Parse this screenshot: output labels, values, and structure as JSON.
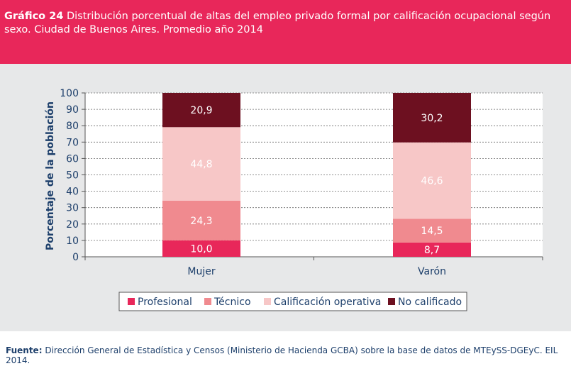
{
  "header": {
    "label": "Gráfico 24",
    "title": "Distribución porcentual de altas del empleo privado formal por calificación ocupacional según sexo. Ciudad de Buenos Aires. Promedio año 2014"
  },
  "footer": {
    "label": "Fuente:",
    "text": "Dirección General de Estadística y Censos (Ministerio de Hacienda GCBA) sobre la base de datos de MTEySS-DGEyC. EIL 2014."
  },
  "chart_data": {
    "type": "bar",
    "stacked": true,
    "categories": [
      "Mujer",
      "Varón"
    ],
    "series": [
      {
        "name": "Profesional",
        "values": [
          10.0,
          8.7
        ],
        "labels": [
          "10,0",
          "8,7"
        ],
        "color": "#e8275a",
        "label_color": "#ffffff"
      },
      {
        "name": "Técnico",
        "values": [
          24.3,
          14.5
        ],
        "labels": [
          "24,3",
          "14,5"
        ],
        "color": "#f08a8f",
        "label_color": "#ffffff"
      },
      {
        "name": "Calificación operativa",
        "values": [
          44.8,
          46.6
        ],
        "labels": [
          "44,8",
          "46,6"
        ],
        "color": "#f7c7c7",
        "label_color": "#ffffff"
      },
      {
        "name": "No calificado",
        "values": [
          20.9,
          30.2
        ],
        "labels": [
          "20,9",
          "30,2"
        ],
        "color": "#6d1020",
        "label_color": "#ffffff"
      }
    ],
    "ylabel": "Porcentaje de la población",
    "ylim": [
      0,
      100
    ],
    "yticks": [
      "0",
      "10",
      "20",
      "30",
      "40",
      "50",
      "60",
      "70",
      "80",
      "90",
      "100"
    ],
    "grid": true,
    "legend_position": "bottom"
  }
}
